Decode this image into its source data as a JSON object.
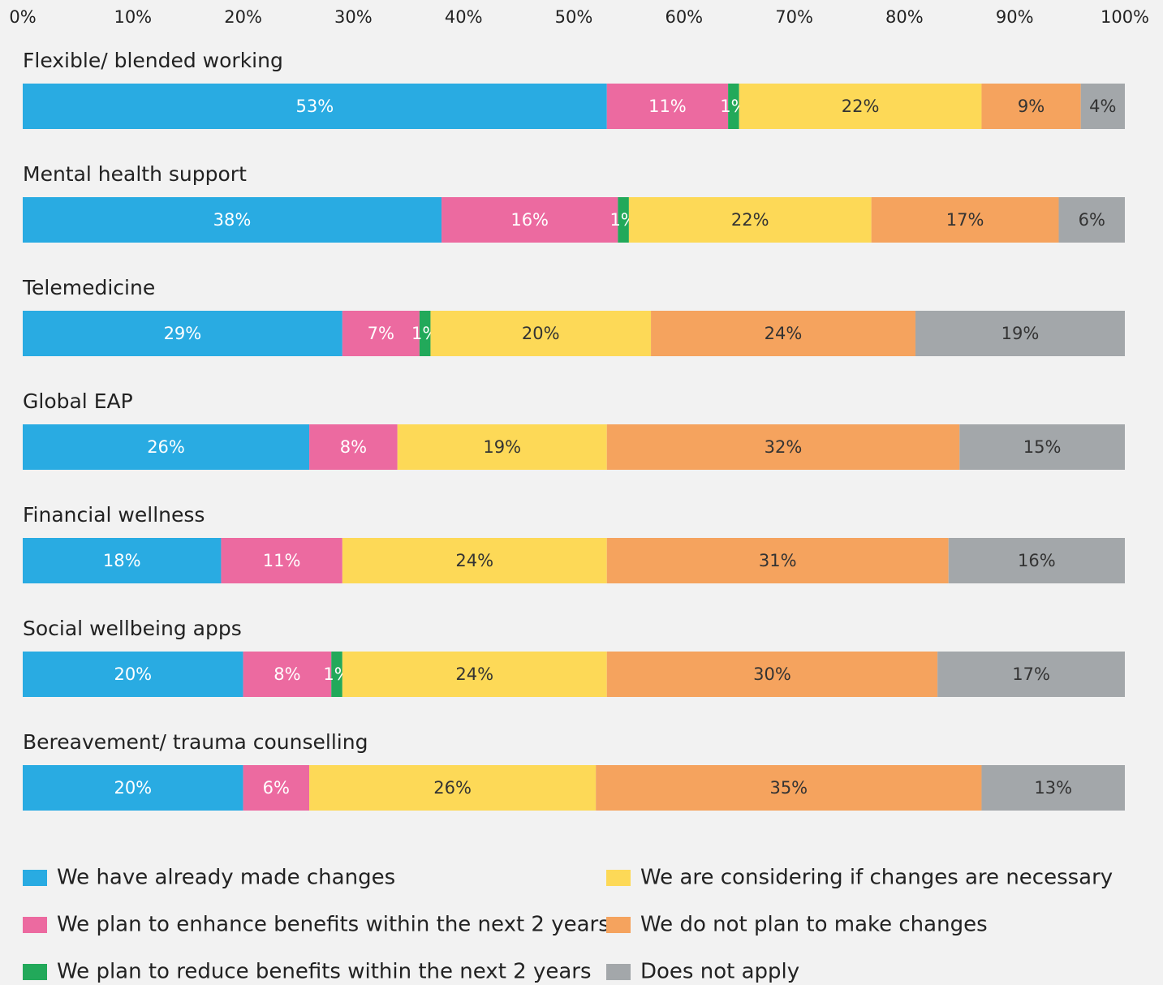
{
  "chart_data": {
    "type": "stacked-bar-horizontal",
    "categories": [
      "Flexible/ blended working",
      "Mental health support",
      "Telemedicine",
      "Global EAP",
      "Financial wellness",
      "Social wellbeing apps",
      "Bereavement/ trauma counselling"
    ],
    "xlim": [
      0,
      100
    ],
    "xticks": [
      {
        "value": 0,
        "label": "0%"
      },
      {
        "value": 10,
        "label": "10%"
      },
      {
        "value": 20,
        "label": "20%"
      },
      {
        "value": 30,
        "label": "30%"
      },
      {
        "value": 40,
        "label": "40%"
      },
      {
        "value": 50,
        "label": "50%"
      },
      {
        "value": 60,
        "label": "60%"
      },
      {
        "value": 70,
        "label": "70%"
      },
      {
        "value": 80,
        "label": "80%"
      },
      {
        "value": 90,
        "label": "90%"
      },
      {
        "value": 100,
        "label": "100%"
      }
    ],
    "series": [
      {
        "name": "We have already made changes",
        "color": "#29abe2",
        "label_color": "#ffffff",
        "values": [
          53,
          38,
          29,
          26,
          18,
          20,
          20
        ],
        "value_labels": [
          "53%",
          "38%",
          "29%",
          "26%",
          "18%",
          "20%",
          "20%"
        ]
      },
      {
        "name": "We plan to enhance benefits within the next 2 years",
        "color": "#ec6aa0",
        "label_color": "#ffffff",
        "values": [
          11,
          16,
          7,
          8,
          11,
          8,
          6
        ],
        "value_labels": [
          "11%",
          "16%",
          "7%",
          "8%",
          "11%",
          "8%",
          "6%"
        ]
      },
      {
        "name": "We plan to reduce benefits within the next 2 years",
        "color": "#22a95a",
        "label_color": "#ffffff",
        "values": [
          1,
          1,
          1,
          null,
          null,
          1,
          null
        ],
        "value_labels": [
          "1%",
          "1%",
          "1%",
          null,
          null,
          "1%",
          null
        ]
      },
      {
        "name": "We are considering if changes are necessary",
        "color": "#fdd957",
        "label_color": "#333333",
        "values": [
          22,
          22,
          20,
          19,
          24,
          24,
          26
        ],
        "value_labels": [
          "22%",
          "22%",
          "20%",
          "19%",
          "24%",
          "24%",
          "26%"
        ]
      },
      {
        "name": "We do not plan to make changes",
        "color": "#f5a35e",
        "label_color": "#333333",
        "values": [
          9,
          17,
          24,
          32,
          31,
          30,
          35
        ],
        "value_labels": [
          "9%",
          "17%",
          "24%",
          "32%",
          "31%",
          "30%",
          "35%"
        ]
      },
      {
        "name": "Does not apply",
        "color": "#a3a7aa",
        "label_color": "#333333",
        "values": [
          4,
          6,
          19,
          15,
          16,
          17,
          13
        ],
        "value_labels": [
          "4%",
          "6%",
          "19%",
          "15%",
          "16%",
          "17%",
          "13%"
        ]
      }
    ]
  }
}
